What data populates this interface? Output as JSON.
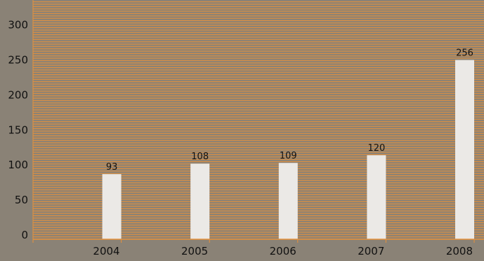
{
  "chart_data": {
    "type": "bar",
    "title": "",
    "xlabel": "",
    "ylabel": "",
    "categories": [
      "2004",
      "2005",
      "2006",
      "2007",
      "2008"
    ],
    "values": [
      93,
      108,
      109,
      120,
      256
    ],
    "value_labels": [
      "93",
      "108",
      "109",
      "120",
      "256"
    ],
    "y_ticks": [
      0,
      50,
      100,
      150,
      200,
      250,
      300
    ],
    "y_tick_labels": [
      "0",
      "50",
      "100",
      "150",
      "200",
      "250",
      "300"
    ],
    "ylim": [
      0,
      350
    ],
    "grid": true,
    "colors": {
      "background": "#8a8276",
      "gridline": "#e8913a",
      "bar": "#ebe9e6",
      "axis": "#e8913a",
      "text": "#111111"
    }
  }
}
